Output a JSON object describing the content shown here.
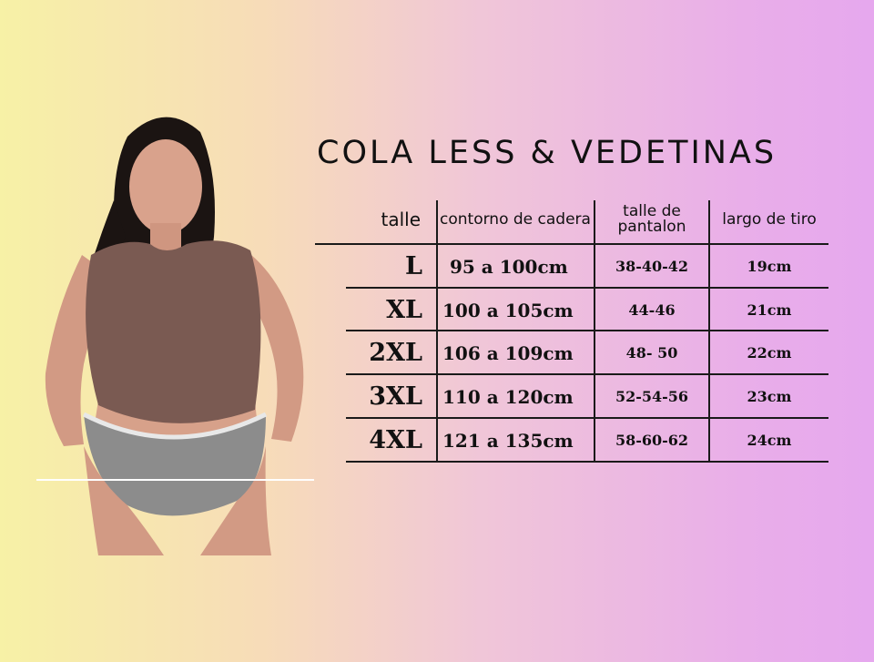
{
  "title": "COLA LESS & VEDETINAS",
  "table": {
    "headers": {
      "size": "talle",
      "hip": "contorno de cadera",
      "pant": "talle de pantalon",
      "rise": "largo de tiro"
    },
    "rows": [
      {
        "size": "L",
        "hip": "95 a 100cm",
        "pant": "38-40-42",
        "rise": "19cm"
      },
      {
        "size": "XL",
        "hip": "100 a 105cm",
        "pant": "44-46",
        "rise": "21cm"
      },
      {
        "size": "2XL",
        "hip": "106 a 109cm",
        "pant": "48- 50",
        "rise": "22cm"
      },
      {
        "size": "3XL",
        "hip": "110 a 120cm",
        "pant": "52-54-56",
        "rise": "23cm"
      },
      {
        "size": "4XL",
        "hip": "121 a 135cm",
        "pant": "58-60-62",
        "rise": "24cm"
      }
    ]
  },
  "colors": {
    "background_left": "#f7f1a6",
    "background_right": "#e6a8ee",
    "top": "#7a5a52",
    "underwear": "#8c8c8c",
    "lines": "#1a1a1a"
  }
}
